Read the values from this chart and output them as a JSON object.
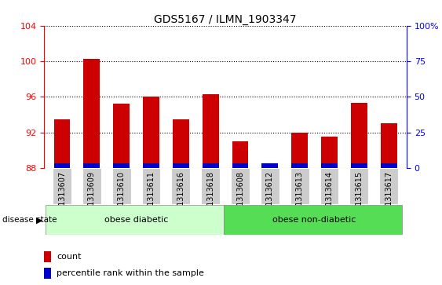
{
  "title": "GDS5167 / ILMN_1903347",
  "samples": [
    "GSM1313607",
    "GSM1313609",
    "GSM1313610",
    "GSM1313611",
    "GSM1313616",
    "GSM1313618",
    "GSM1313608",
    "GSM1313612",
    "GSM1313613",
    "GSM1313614",
    "GSM1313615",
    "GSM1313617"
  ],
  "count_values": [
    93.5,
    100.3,
    95.2,
    96.0,
    93.5,
    96.3,
    91.0,
    88.5,
    92.0,
    91.5,
    95.3,
    93.0
  ],
  "pct_bar_height": 0.55,
  "bar_bottom": 88.0,
  "ylim_left": [
    88,
    104
  ],
  "ylim_right": [
    0,
    100
  ],
  "yticks_left": [
    88,
    92,
    96,
    100,
    104
  ],
  "yticks_right": [
    0,
    25,
    50,
    75,
    100
  ],
  "count_color": "#cc0000",
  "percentile_color": "#0000cc",
  "group1_label": "obese diabetic",
  "group2_label": "obese non-diabetic",
  "group1_color": "#ccffcc",
  "group2_color": "#55dd55",
  "group1_count": 6,
  "group2_count": 6,
  "disease_state_label": "disease state",
  "legend_count": "count",
  "legend_percentile": "percentile rank within the sample",
  "bar_width": 0.55,
  "title_fontsize": 10,
  "tick_label_fontsize": 7,
  "axis_tick_fontsize": 8,
  "xtick_bg_color": "#cccccc"
}
